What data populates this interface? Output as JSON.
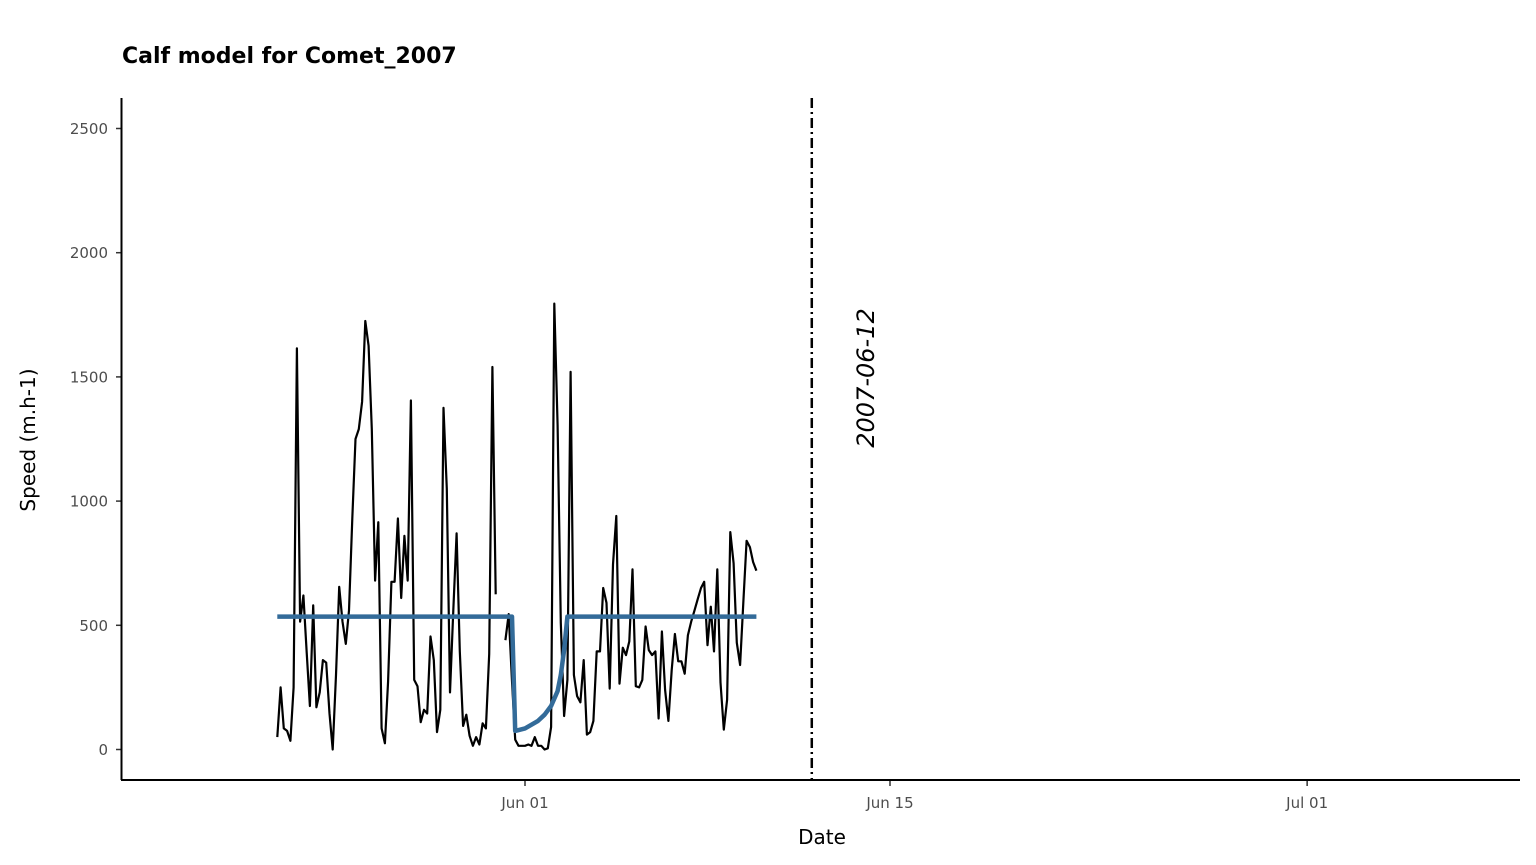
{
  "chart_data": {
    "type": "line",
    "title": "Calf model for Comet_2007",
    "xlabel": "Date",
    "ylabel": "Speed (m.h-1)",
    "ylim": [
      -120,
      2620
    ],
    "y_ticks": [
      0,
      500,
      1000,
      1500,
      2000,
      2500
    ],
    "x_ticks": [
      {
        "date": "2007-06-01",
        "label": "Jun 01"
      },
      {
        "date": "2007-06-15",
        "label": "Jun 15"
      },
      {
        "date": "2007-07-01",
        "label": "Jul 01"
      }
    ],
    "grid": false,
    "annotation": {
      "date": "2007-06-12",
      "label": "2007-06-12",
      "line_style": "dotdash"
    },
    "series": [
      {
        "kind": "observed",
        "color": "#000000",
        "segments": [
          [
            [
              "2007-05-22T12:00",
              50
            ],
            [
              "2007-05-22T15:00",
              250
            ],
            [
              "2007-05-22T18:00",
              85
            ],
            [
              "2007-05-22T21:00",
              75
            ],
            [
              "2007-05-23T00:00",
              35
            ],
            [
              "2007-05-23T03:00",
              250
            ],
            [
              "2007-05-23T06:00",
              1615
            ],
            [
              "2007-05-23T09:00",
              515
            ],
            [
              "2007-05-23T12:00",
              620
            ],
            [
              "2007-05-23T15:00",
              390
            ],
            [
              "2007-05-23T18:00",
              175
            ],
            [
              "2007-05-23T21:00",
              580
            ],
            [
              "2007-05-24T00:00",
              170
            ],
            [
              "2007-05-24T03:00",
              230
            ],
            [
              "2007-05-24T06:00",
              360
            ],
            [
              "2007-05-24T09:00",
              350
            ],
            [
              "2007-05-24T12:00",
              145
            ],
            [
              "2007-05-24T15:00",
              0
            ],
            [
              "2007-05-24T18:00",
              300
            ],
            [
              "2007-05-24T21:00",
              655
            ],
            [
              "2007-05-25T00:00",
              515
            ],
            [
              "2007-05-25T03:00",
              425
            ],
            [
              "2007-05-25T06:00",
              560
            ],
            [
              "2007-05-25T09:00",
              930
            ],
            [
              "2007-05-25T12:00",
              1250
            ],
            [
              "2007-05-25T15:00",
              1290
            ],
            [
              "2007-05-25T18:00",
              1400
            ],
            [
              "2007-05-25T21:00",
              1725
            ],
            [
              "2007-05-26T00:00",
              1625
            ],
            [
              "2007-05-26T03:00",
              1290
            ],
            [
              "2007-05-26T06:00",
              680
            ],
            [
              "2007-05-26T09:00",
              915
            ],
            [
              "2007-05-26T12:00",
              85
            ],
            [
              "2007-05-26T15:00",
              25
            ],
            [
              "2007-05-26T18:00",
              275
            ],
            [
              "2007-05-26T21:00",
              675
            ],
            [
              "2007-05-27T00:00",
              675
            ],
            [
              "2007-05-27T03:00",
              930
            ],
            [
              "2007-05-27T06:00",
              610
            ],
            [
              "2007-05-27T09:00",
              860
            ],
            [
              "2007-05-27T12:00",
              680
            ],
            [
              "2007-05-27T15:00",
              1405
            ],
            [
              "2007-05-27T18:00",
              280
            ],
            [
              "2007-05-27T21:00",
              255
            ],
            [
              "2007-05-28T00:00",
              110
            ],
            [
              "2007-05-28T03:00",
              160
            ],
            [
              "2007-05-28T06:00",
              145
            ],
            [
              "2007-05-28T09:00",
              455
            ],
            [
              "2007-05-28T12:00",
              360
            ],
            [
              "2007-05-28T15:00",
              70
            ],
            [
              "2007-05-28T18:00",
              160
            ],
            [
              "2007-05-28T21:00",
              1375
            ],
            [
              "2007-05-29T00:00",
              1050
            ],
            [
              "2007-05-29T03:00",
              230
            ],
            [
              "2007-05-29T06:00",
              560
            ],
            [
              "2007-05-29T09:00",
              870
            ],
            [
              "2007-05-29T12:00",
              395
            ],
            [
              "2007-05-29T15:00",
              95
            ],
            [
              "2007-05-29T18:00",
              140
            ],
            [
              "2007-05-29T21:00",
              55
            ],
            [
              "2007-05-30T00:00",
              15
            ],
            [
              "2007-05-30T03:00",
              50
            ],
            [
              "2007-05-30T06:00",
              20
            ],
            [
              "2007-05-30T09:00",
              105
            ],
            [
              "2007-05-30T12:00",
              85
            ],
            [
              "2007-05-30T15:00",
              385
            ],
            [
              "2007-05-30T18:00",
              1540
            ],
            [
              "2007-05-30T21:00",
              625
            ]
          ],
          [
            [
              "2007-05-31T06:00",
              440
            ],
            [
              "2007-05-31T09:00",
              545
            ],
            [
              "2007-05-31T12:00",
              275
            ],
            [
              "2007-05-31T15:00",
              40
            ],
            [
              "2007-05-31T18:00",
              15
            ],
            [
              "2007-05-31T21:00",
              15
            ],
            [
              "2007-06-01T00:00",
              15
            ],
            [
              "2007-06-01T03:00",
              20
            ],
            [
              "2007-06-01T06:00",
              15
            ],
            [
              "2007-06-01T09:00",
              50
            ],
            [
              "2007-06-01T12:00",
              15
            ],
            [
              "2007-06-01T15:00",
              15
            ],
            [
              "2007-06-01T18:00",
              0
            ],
            [
              "2007-06-01T21:00",
              5
            ],
            [
              "2007-06-02T00:00",
              90
            ],
            [
              "2007-06-02T03:00",
              1795
            ],
            [
              "2007-06-02T06:00",
              1305
            ],
            [
              "2007-06-02T09:00",
              510
            ],
            [
              "2007-06-02T12:00",
              135
            ],
            [
              "2007-06-02T15:00",
              280
            ],
            [
              "2007-06-02T18:00",
              1520
            ],
            [
              "2007-06-02T21:00",
              300
            ],
            [
              "2007-06-03T00:00",
              215
            ],
            [
              "2007-06-03T03:00",
              190
            ],
            [
              "2007-06-03T06:00",
              360
            ],
            [
              "2007-06-03T09:00",
              60
            ],
            [
              "2007-06-03T12:00",
              70
            ],
            [
              "2007-06-03T15:00",
              115
            ],
            [
              "2007-06-03T18:00",
              395
            ],
            [
              "2007-06-03T21:00",
              395
            ],
            [
              "2007-06-04T00:00",
              650
            ],
            [
              "2007-06-04T03:00",
              590
            ],
            [
              "2007-06-04T06:00",
              245
            ],
            [
              "2007-06-04T09:00",
              745
            ],
            [
              "2007-06-04T12:00",
              940
            ],
            [
              "2007-06-04T15:00",
              265
            ],
            [
              "2007-06-04T18:00",
              410
            ],
            [
              "2007-06-04T21:00",
              380
            ],
            [
              "2007-06-05T00:00",
              435
            ],
            [
              "2007-06-05T03:00",
              725
            ],
            [
              "2007-06-05T06:00",
              255
            ],
            [
              "2007-06-05T09:00",
              250
            ],
            [
              "2007-06-05T12:00",
              280
            ],
            [
              "2007-06-05T15:00",
              495
            ],
            [
              "2007-06-05T18:00",
              400
            ],
            [
              "2007-06-05T21:00",
              380
            ],
            [
              "2007-06-06T00:00",
              395
            ],
            [
              "2007-06-06T03:00",
              125
            ],
            [
              "2007-06-06T06:00",
              475
            ],
            [
              "2007-06-06T09:00",
              240
            ],
            [
              "2007-06-06T12:00",
              115
            ],
            [
              "2007-06-06T15:00",
              320
            ],
            [
              "2007-06-06T18:00",
              465
            ],
            [
              "2007-06-06T21:00",
              355
            ],
            [
              "2007-06-07T00:00",
              355
            ],
            [
              "2007-06-07T03:00",
              305
            ],
            [
              "2007-06-07T06:00",
              460
            ],
            [
              "2007-06-07T09:00",
              515
            ],
            [
              "2007-06-07T12:00",
              560
            ],
            [
              "2007-06-07T15:00",
              605
            ],
            [
              "2007-06-07T18:00",
              650
            ],
            [
              "2007-06-07T21:00",
              675
            ],
            [
              "2007-06-08T00:00",
              420
            ],
            [
              "2007-06-08T03:00",
              575
            ],
            [
              "2007-06-08T06:00",
              395
            ],
            [
              "2007-06-08T09:00",
              725
            ],
            [
              "2007-06-08T12:00",
              270
            ],
            [
              "2007-06-08T15:00",
              80
            ],
            [
              "2007-06-08T18:00",
              200
            ],
            [
              "2007-06-08T21:00",
              875
            ],
            [
              "2007-06-09T00:00",
              750
            ],
            [
              "2007-06-09T03:00",
              430
            ],
            [
              "2007-06-09T06:00",
              340
            ],
            [
              "2007-06-09T09:00",
              590
            ],
            [
              "2007-06-09T12:00",
              840
            ],
            [
              "2007-06-09T15:00",
              815
            ],
            [
              "2007-06-09T18:00",
              755
            ],
            [
              "2007-06-09T21:00",
              720
            ]
          ]
        ]
      },
      {
        "kind": "model",
        "color": "#336b99",
        "points": [
          [
            "2007-05-22T12:00",
            535
          ],
          [
            "2007-05-31T12:00",
            535
          ],
          [
            "2007-05-31T15:00",
            75
          ],
          [
            "2007-06-01T00:00",
            85
          ],
          [
            "2007-06-01T06:00",
            100
          ],
          [
            "2007-06-01T12:00",
            115
          ],
          [
            "2007-06-01T18:00",
            140
          ],
          [
            "2007-06-02T00:00",
            175
          ],
          [
            "2007-06-02T06:00",
            235
          ],
          [
            "2007-06-02T09:00",
            300
          ],
          [
            "2007-06-02T12:00",
            400
          ],
          [
            "2007-06-02T15:00",
            535
          ],
          [
            "2007-06-09T21:00",
            535
          ]
        ]
      }
    ]
  }
}
